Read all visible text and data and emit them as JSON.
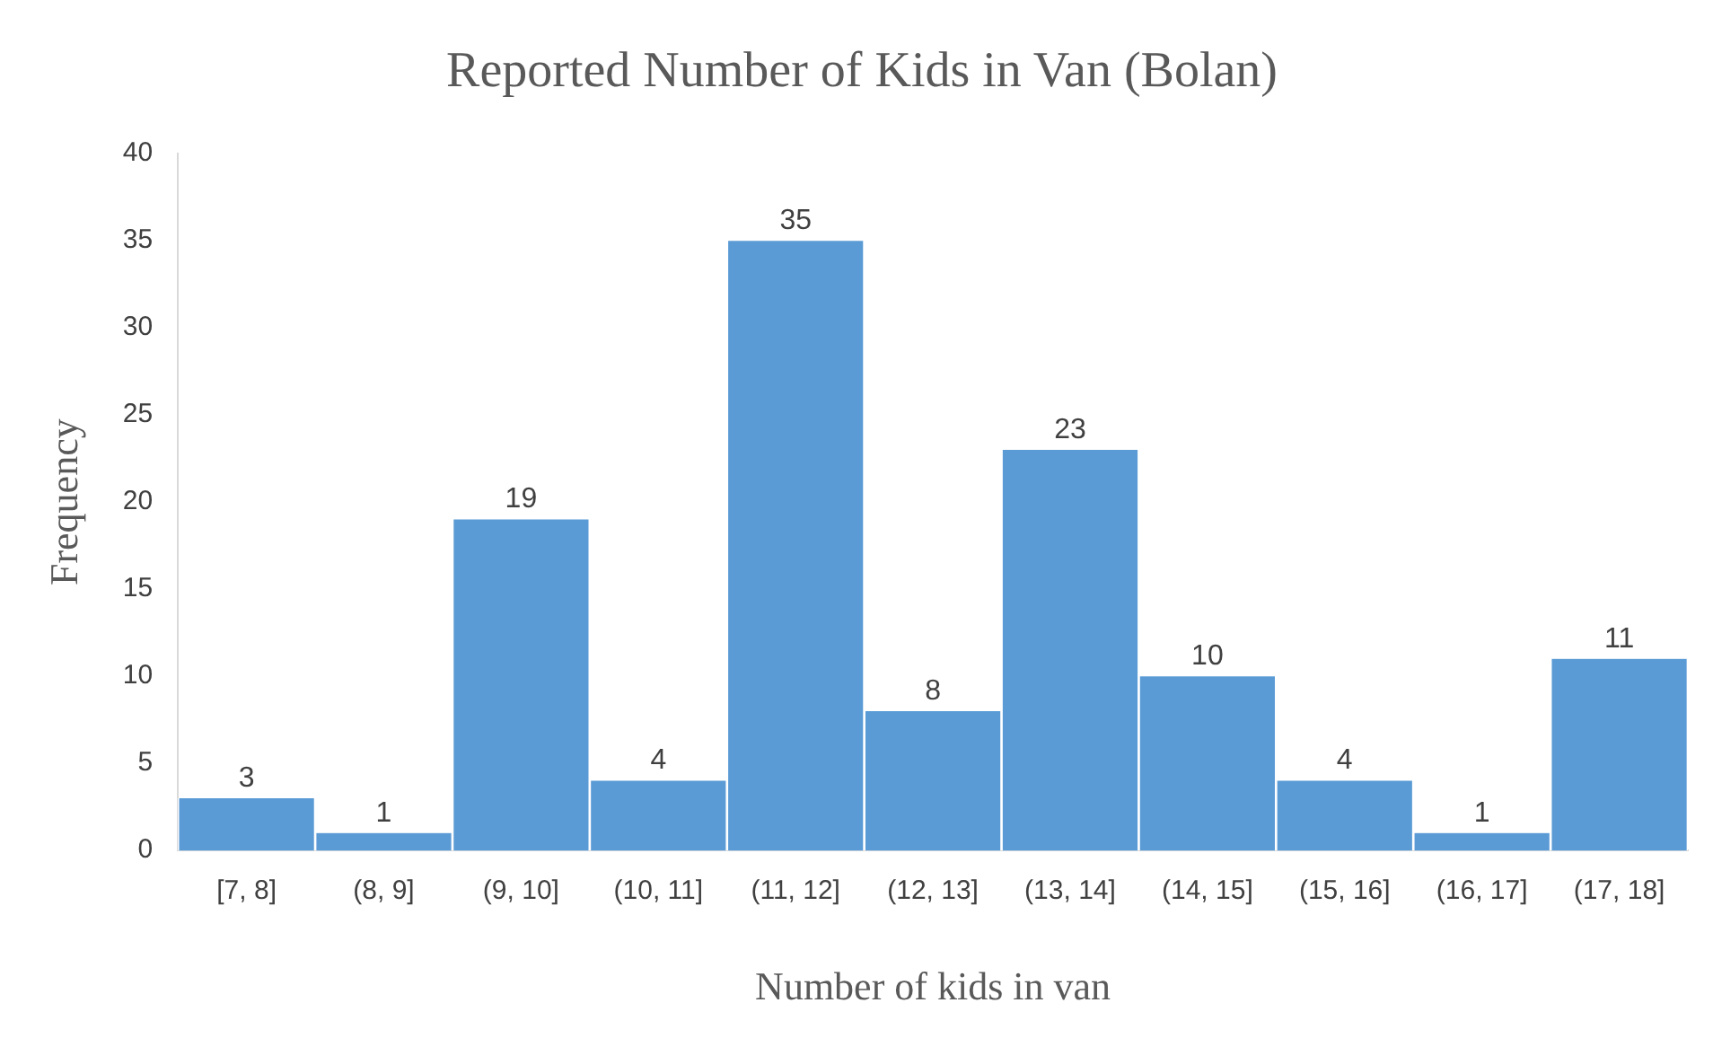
{
  "chart_data": {
    "type": "bar",
    "title": "Reported Number of Kids in Van (Bolan)",
    "xlabel": "Number of kids in van",
    "ylabel": "Frequency",
    "categories": [
      "[7, 8]",
      "(8, 9]",
      "(9, 10]",
      "(10, 11]",
      "(11, 12]",
      "(12, 13]",
      "(13, 14]",
      "(14, 15]",
      "(15, 16]",
      "(16, 17]",
      "(17, 18]"
    ],
    "values": [
      3,
      1,
      19,
      4,
      35,
      8,
      23,
      10,
      4,
      1,
      11
    ],
    "color": "#5b9bd5",
    "ylim": [
      0,
      40
    ],
    "yticks": [
      0,
      5,
      10,
      15,
      20,
      25,
      30,
      35,
      40
    ],
    "grid": false,
    "legend": false,
    "data_labels": true
  }
}
